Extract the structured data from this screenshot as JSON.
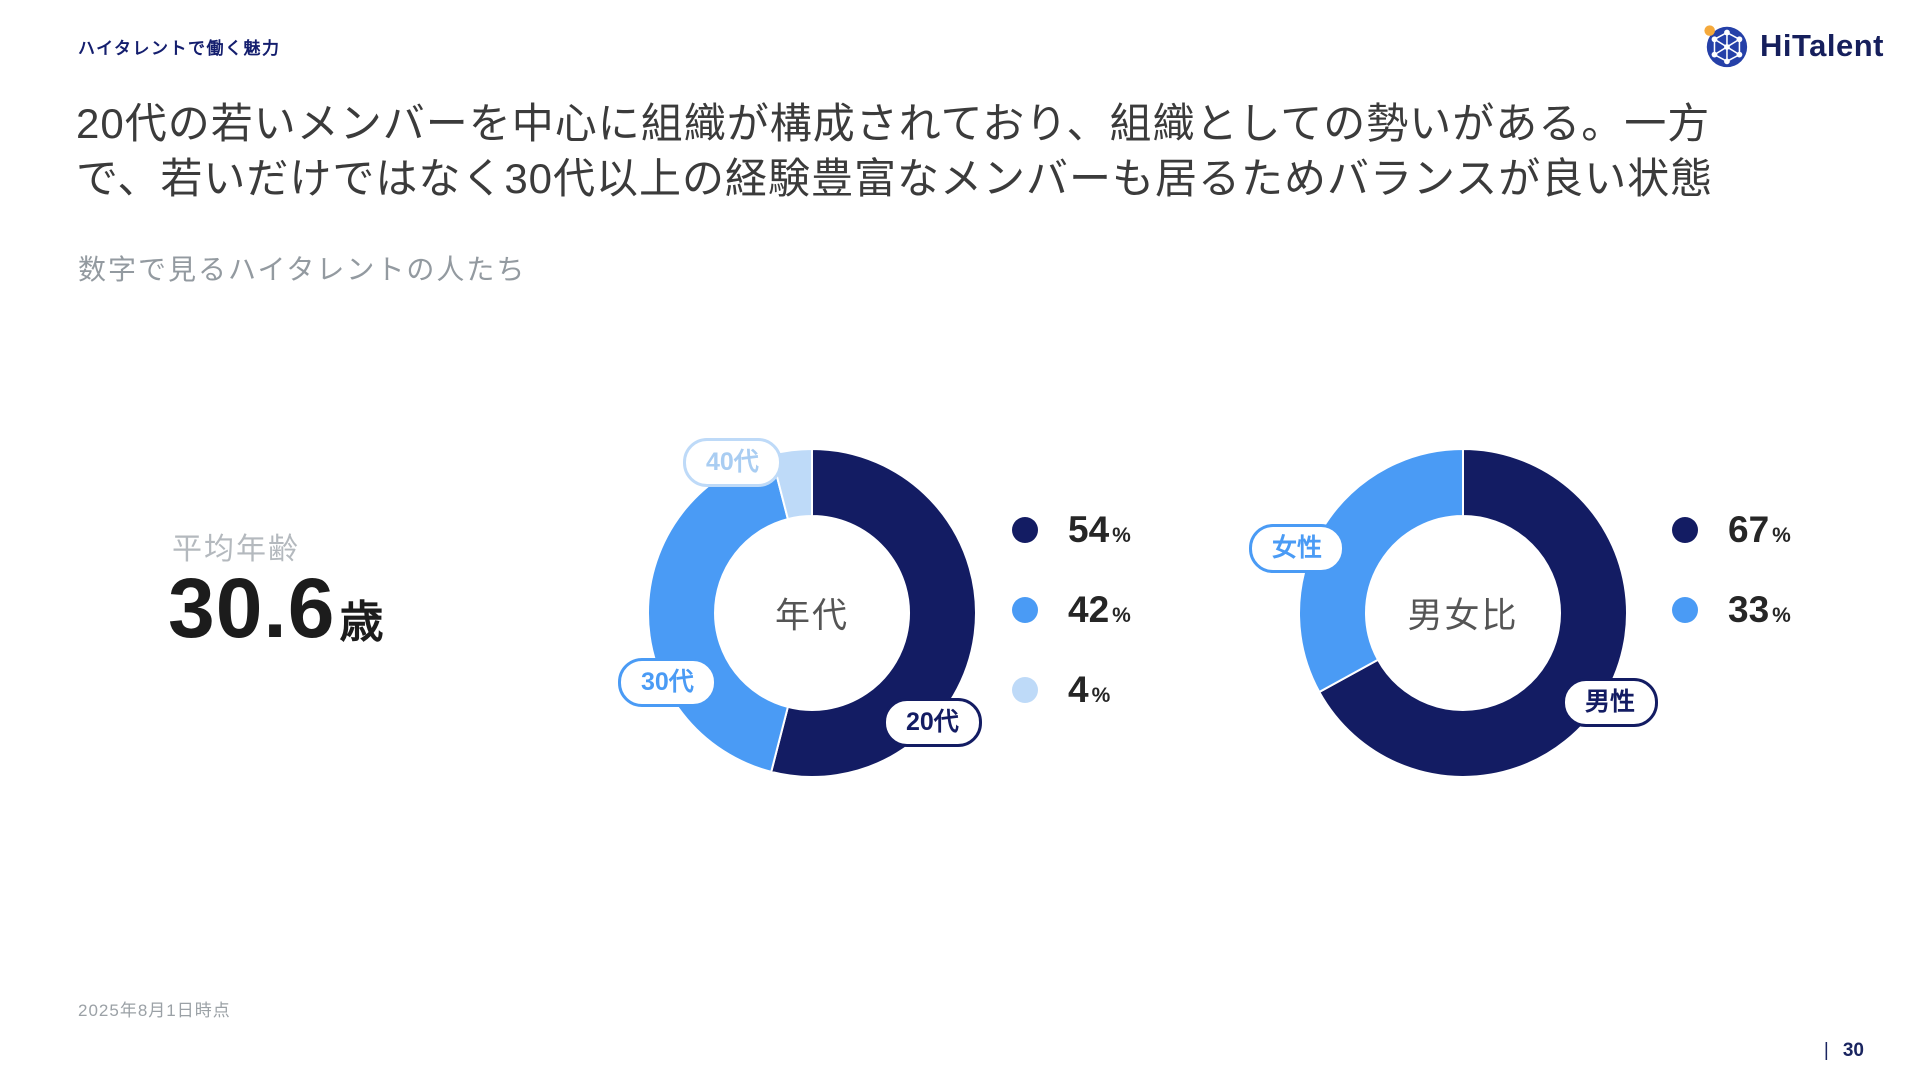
{
  "colors": {
    "navy": "#131c63",
    "blue": "#4a9bf5",
    "light_blue": "#bedaf8",
    "logo_orange": "#f5a93b"
  },
  "header": {
    "eyebrow": "ハイタレントで働く魅力",
    "logo_text": "HiTalent"
  },
  "title": {
    "line1": "20代の若いメンバーを中心に組織が構成されており、組織としての勢いがある。一方",
    "line2": "で、若いだけではなく30代以上の経験豊富なメンバーも居るためバランスが良い状態"
  },
  "subtitle": "数字で見るハイタレントの人たち",
  "stat": {
    "label": "平均年齢",
    "value": "30.6",
    "unit": "歳"
  },
  "chart_data": [
    {
      "type": "pie",
      "donut": true,
      "title": "年代",
      "unit": "%",
      "legend_position": "right",
      "segments": [
        {
          "label": "20代",
          "value": 54,
          "color": "#131c63"
        },
        {
          "label": "30代",
          "value": 42,
          "color": "#4a9bf5"
        },
        {
          "label": "40代",
          "value": 4,
          "color": "#bedaf8"
        }
      ]
    },
    {
      "type": "pie",
      "donut": true,
      "title": "男女比",
      "unit": "%",
      "legend_position": "right",
      "segments": [
        {
          "label": "男性",
          "value": 67,
          "color": "#131c63"
        },
        {
          "label": "女性",
          "value": 33,
          "color": "#4a9bf5"
        }
      ]
    }
  ],
  "footer": {
    "date_note": "2025年8月1日時点",
    "page_separator": "|",
    "page_number": "30"
  }
}
